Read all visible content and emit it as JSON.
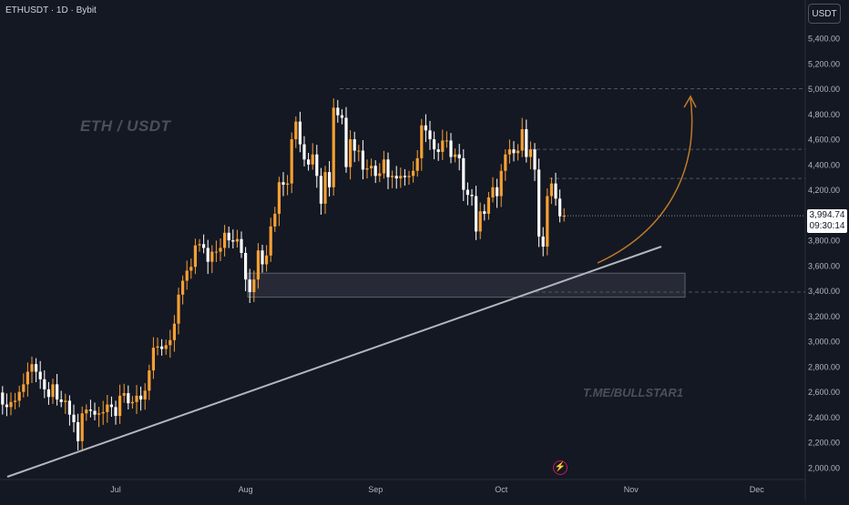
{
  "header": {
    "symbol_title": "ETHUSDT · 1D · Bybit",
    "currency_label": "USDT"
  },
  "annotations": {
    "title": "ETH / USDT",
    "watermark": "T.ME/BULLSTAR1"
  },
  "last_price": {
    "value": "3,994.74",
    "countdown": "09:30:14",
    "badge_color": "#ffffff"
  },
  "event_icon": "lightning-icon",
  "colors": {
    "background": "#141823",
    "up_candle": "#f7a033",
    "down_candle": "#ffffff",
    "trendline": "#b2b5be",
    "projection_arrow": "#c07a28",
    "zone_fill": "#2a2e39",
    "zone_border": "#5d606b"
  },
  "chart_data": {
    "type": "candlestick",
    "x_axis": {
      "labels": [
        "Jul",
        "Aug",
        "Sep",
        "Oct",
        "Nov",
        "Dec"
      ],
      "label_dates": [
        "2025-07-01",
        "2025-08-01",
        "2025-09-01",
        "2025-10-01",
        "2025-11-01",
        "2025-12-01"
      ],
      "range": [
        "2025-06-01",
        "2025-12-31"
      ]
    },
    "y_axis": {
      "labels": [
        "2,000.00",
        "2,200.00",
        "2,400.00",
        "2,600.00",
        "2,800.00",
        "3,000.00",
        "3,200.00",
        "3,400.00",
        "3,600.00",
        "3,800.00",
        "4,000.00",
        "4,200.00",
        "4,400.00",
        "4,600.00",
        "4,800.00",
        "5,000.00",
        "5,200.00",
        "5,400.00"
      ],
      "values": [
        2000,
        2200,
        2400,
        2600,
        2800,
        3000,
        3200,
        3400,
        3600,
        3800,
        4000,
        4200,
        4400,
        4600,
        4800,
        5000,
        5200,
        5400
      ],
      "range": [
        1930,
        5520
      ]
    },
    "candles_close": [
      [
        "2025-06-01",
        2590
      ],
      [
        "2025-06-02",
        2610
      ],
      [
        "2025-06-03",
        2595
      ],
      [
        "2025-06-04",
        2500
      ],
      [
        "2025-06-05",
        2480
      ],
      [
        "2025-06-06",
        2520
      ],
      [
        "2025-06-07",
        2530
      ],
      [
        "2025-06-08",
        2600
      ],
      [
        "2025-06-09",
        2660
      ],
      [
        "2025-06-10",
        2760
      ],
      [
        "2025-06-11",
        2820
      ],
      [
        "2025-06-12",
        2760
      ],
      [
        "2025-06-13",
        2700
      ],
      [
        "2025-06-14",
        2620
      ],
      [
        "2025-06-15",
        2560
      ],
      [
        "2025-06-16",
        2660
      ],
      [
        "2025-06-17",
        2540
      ],
      [
        "2025-06-18",
        2520
      ],
      [
        "2025-06-19",
        2530
      ],
      [
        "2025-06-20",
        2420
      ],
      [
        "2025-06-21",
        2360
      ],
      [
        "2025-06-22",
        2210
      ],
      [
        "2025-06-23",
        2430
      ],
      [
        "2025-06-24",
        2460
      ],
      [
        "2025-06-25",
        2450
      ],
      [
        "2025-06-26",
        2420
      ],
      [
        "2025-06-27",
        2430
      ],
      [
        "2025-06-28",
        2440
      ],
      [
        "2025-06-29",
        2500
      ],
      [
        "2025-06-30",
        2480
      ],
      [
        "2025-07-01",
        2410
      ],
      [
        "2025-07-02",
        2570
      ],
      [
        "2025-07-03",
        2590
      ],
      [
        "2025-07-04",
        2510
      ],
      [
        "2025-07-05",
        2520
      ],
      [
        "2025-07-06",
        2570
      ],
      [
        "2025-07-07",
        2540
      ],
      [
        "2025-07-08",
        2610
      ],
      [
        "2025-07-09",
        2770
      ],
      [
        "2025-07-10",
        2950
      ],
      [
        "2025-07-11",
        2960
      ],
      [
        "2025-07-12",
        2940
      ],
      [
        "2025-07-13",
        2970
      ],
      [
        "2025-07-14",
        3010
      ],
      [
        "2025-07-15",
        3140
      ],
      [
        "2025-07-16",
        3370
      ],
      [
        "2025-07-17",
        3480
      ],
      [
        "2025-07-18",
        3560
      ],
      [
        "2025-07-19",
        3590
      ],
      [
        "2025-07-20",
        3760
      ],
      [
        "2025-07-21",
        3770
      ],
      [
        "2025-07-22",
        3740
      ],
      [
        "2025-07-23",
        3630
      ],
      [
        "2025-07-24",
        3710
      ],
      [
        "2025-07-25",
        3710
      ],
      [
        "2025-07-26",
        3740
      ],
      [
        "2025-07-27",
        3860
      ],
      [
        "2025-07-28",
        3800
      ],
      [
        "2025-07-29",
        3790
      ],
      [
        "2025-07-30",
        3810
      ],
      [
        "2025-07-31",
        3700
      ],
      [
        "2025-08-01",
        3490
      ],
      [
        "2025-08-02",
        3390
      ],
      [
        "2025-08-03",
        3490
      ],
      [
        "2025-08-04",
        3720
      ],
      [
        "2025-08-05",
        3610
      ],
      [
        "2025-08-06",
        3680
      ],
      [
        "2025-08-07",
        3910
      ],
      [
        "2025-08-08",
        4010
      ],
      [
        "2025-08-09",
        4260
      ],
      [
        "2025-08-10",
        4240
      ],
      [
        "2025-08-11",
        4250
      ],
      [
        "2025-08-12",
        4600
      ],
      [
        "2025-08-13",
        4740
      ],
      [
        "2025-08-14",
        4560
      ],
      [
        "2025-08-15",
        4440
      ],
      [
        "2025-08-16",
        4400
      ],
      [
        "2025-08-17",
        4480
      ],
      [
        "2025-08-18",
        4310
      ],
      [
        "2025-08-19",
        4090
      ],
      [
        "2025-08-20",
        4340
      ],
      [
        "2025-08-21",
        4220
      ],
      [
        "2025-08-22",
        4850
      ],
      [
        "2025-08-23",
        4790
      ],
      [
        "2025-08-24",
        4770
      ],
      [
        "2025-08-25",
        4380
      ],
      [
        "2025-08-26",
        4600
      ],
      [
        "2025-08-27",
        4510
      ],
      [
        "2025-08-28",
        4510
      ],
      [
        "2025-08-29",
        4360
      ],
      [
        "2025-08-30",
        4370
      ],
      [
        "2025-08-31",
        4390
      ],
      [
        "2025-09-01",
        4310
      ],
      [
        "2025-09-02",
        4330
      ],
      [
        "2025-09-03",
        4440
      ],
      [
        "2025-09-04",
        4300
      ],
      [
        "2025-09-05",
        4310
      ],
      [
        "2025-09-06",
        4290
      ],
      [
        "2025-09-07",
        4310
      ],
      [
        "2025-09-08",
        4300
      ],
      [
        "2025-09-09",
        4310
      ],
      [
        "2025-09-10",
        4350
      ],
      [
        "2025-09-11",
        4450
      ],
      [
        "2025-09-12",
        4710
      ],
      [
        "2025-09-13",
        4670
      ],
      [
        "2025-09-14",
        4600
      ],
      [
        "2025-09-15",
        4520
      ],
      [
        "2025-09-16",
        4500
      ],
      [
        "2025-09-17",
        4590
      ],
      [
        "2025-09-18",
        4590
      ],
      [
        "2025-09-19",
        4460
      ],
      [
        "2025-09-20",
        4480
      ],
      [
        "2025-09-21",
        4450
      ],
      [
        "2025-09-22",
        4200
      ],
      [
        "2025-09-23",
        4160
      ],
      [
        "2025-09-24",
        4150
      ],
      [
        "2025-09-25",
        3870
      ],
      [
        "2025-09-26",
        4030
      ],
      [
        "2025-09-27",
        4010
      ],
      [
        "2025-09-28",
        4140
      ],
      [
        "2025-09-29",
        4220
      ],
      [
        "2025-09-30",
        4150
      ],
      [
        "2025-10-01",
        4350
      ],
      [
        "2025-10-02",
        4480
      ],
      [
        "2025-10-03",
        4520
      ],
      [
        "2025-10-04",
        4490
      ],
      [
        "2025-10-05",
        4510
      ],
      [
        "2025-10-06",
        4680
      ],
      [
        "2025-10-07",
        4460
      ],
      [
        "2025-10-08",
        4520
      ],
      [
        "2025-10-09",
        4360
      ],
      [
        "2025-10-10",
        3830
      ],
      [
        "2025-10-11",
        3750
      ],
      [
        "2025-10-12",
        4150
      ],
      [
        "2025-10-13",
        4250
      ],
      [
        "2025-10-14",
        4130
      ],
      [
        "2025-10-15",
        3990
      ],
      [
        "2025-10-16",
        3994.74
      ]
    ],
    "title": "",
    "xlabel": "",
    "ylabel": "",
    "grid": false
  }
}
